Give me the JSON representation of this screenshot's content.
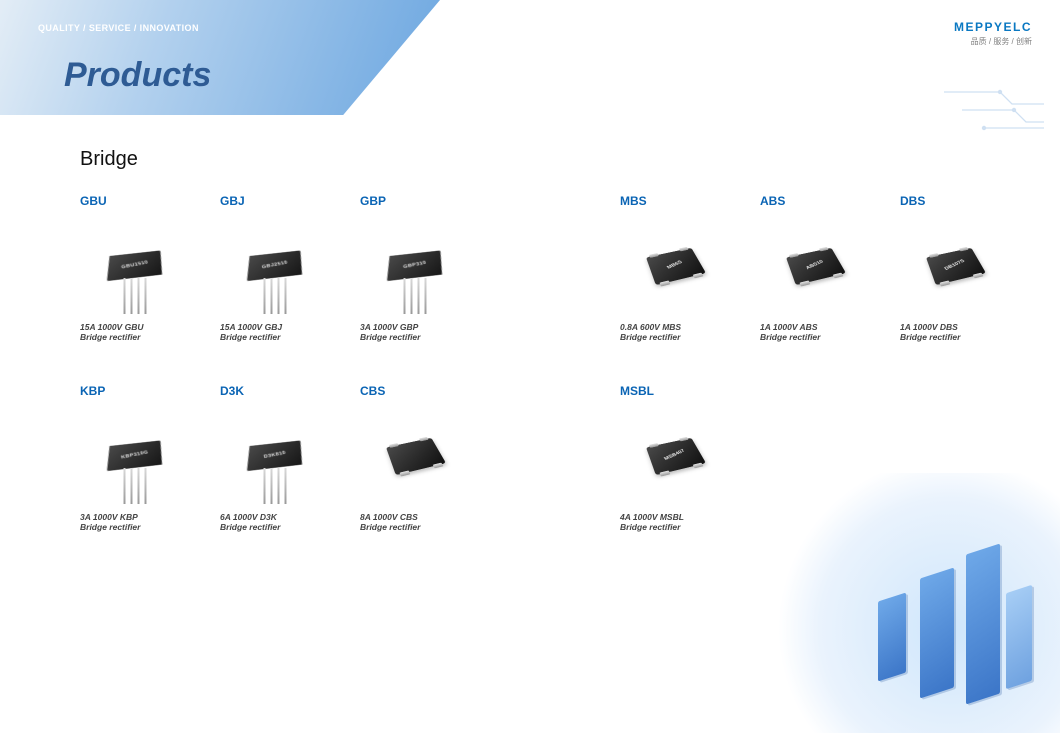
{
  "header": {
    "qsi": "QUALITY / SERVICE / INNOVATION",
    "title": "Products",
    "brand_logo": "MEPPYELC",
    "brand_sub": "品质 / 服务 / 创新"
  },
  "section_title": "Bridge",
  "colors": {
    "accent": "#0a64b4",
    "title": "#2e5b94",
    "brand": "#0a78c2"
  },
  "products": {
    "row1": [
      {
        "code": "GBU",
        "chip_text": "GBU1510",
        "desc1": "15A 1000V GBU",
        "desc2": "Bridge rectifier",
        "style": "through"
      },
      {
        "code": "GBJ",
        "chip_text": "GBJ2510",
        "desc1": "15A 1000V GBJ",
        "desc2": "Bridge rectifier",
        "style": "through"
      },
      {
        "code": "GBP",
        "chip_text": "GBP310",
        "desc1": "3A 1000V GBP",
        "desc2": "Bridge rectifier",
        "style": "through"
      },
      {
        "code": "MBS",
        "chip_text": "MB6S",
        "desc1": "0.8A 600V MBS",
        "desc2": "Bridge rectifier",
        "style": "smd"
      },
      {
        "code": "ABS",
        "chip_text": "ABS10",
        "desc1": "1A 1000V ABS",
        "desc2": "Bridge rectifier",
        "style": "smd"
      },
      {
        "code": "DBS",
        "chip_text": "DB107S",
        "desc1": "1A 1000V DBS",
        "desc2": "Bridge rectifier",
        "style": "smd"
      }
    ],
    "row2": [
      {
        "code": "KBP",
        "chip_text": "KBP310G",
        "desc1": "3A 1000V KBP",
        "desc2": "Bridge rectifier",
        "style": "through"
      },
      {
        "code": "D3K",
        "chip_text": "D3K810",
        "desc1": "6A 1000V D3K",
        "desc2": "Bridge rectifier",
        "style": "through"
      },
      {
        "code": "CBS",
        "chip_text": "",
        "desc1": "8A 1000V CBS",
        "desc2": "Bridge rectifier",
        "style": "smd"
      },
      {
        "code": "MSBL",
        "chip_text": "MSB407",
        "desc1": "4A 1000V MSBL",
        "desc2": "Bridge rectifier",
        "style": "smd"
      }
    ]
  }
}
